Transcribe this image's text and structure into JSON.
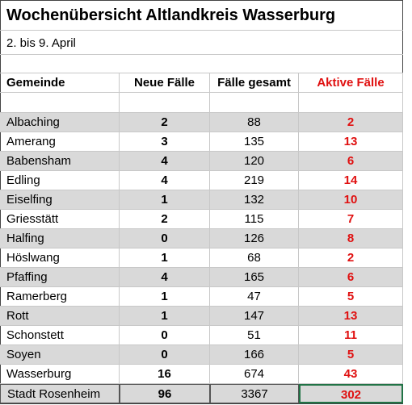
{
  "title": "Wochenübersicht Altlandkreis Wasserburg",
  "subtitle": "2. bis 9. April",
  "table": {
    "header": [
      "Gemeinde",
      "Neue Fälle",
      "Fälle gesamt",
      "Aktive Fälle"
    ],
    "rows": [
      [
        "Albaching",
        2,
        88,
        2
      ],
      [
        "Amerang",
        3,
        135,
        13
      ],
      [
        "Babensham",
        4,
        120,
        6
      ],
      [
        "Edling",
        4,
        219,
        14
      ],
      [
        "Eiselfing",
        1,
        132,
        10
      ],
      [
        "Griesstätt",
        2,
        115,
        7
      ],
      [
        "Halfing",
        0,
        126,
        8
      ],
      [
        "Höslwang",
        1,
        68,
        2
      ],
      [
        "Pfaffing",
        4,
        165,
        6
      ],
      [
        "Ramerberg",
        1,
        47,
        5
      ],
      [
        "Rott",
        1,
        147,
        13
      ],
      [
        "Schonstett",
        0,
        51,
        11
      ],
      [
        "Soyen",
        0,
        166,
        5
      ],
      [
        "Wasserburg",
        16,
        674,
        43
      ],
      [
        "Stadt Rosenheim",
        96,
        3367,
        302
      ]
    ]
  }
}
